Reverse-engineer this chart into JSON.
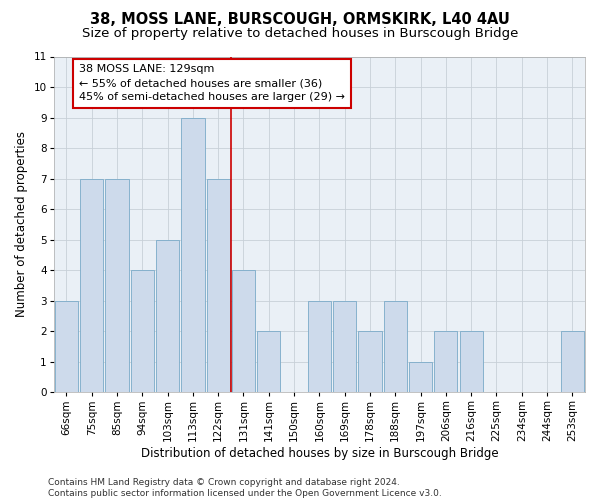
{
  "title1": "38, MOSS LANE, BURSCOUGH, ORMSKIRK, L40 4AU",
  "title2": "Size of property relative to detached houses in Burscough Bridge",
  "xlabel": "Distribution of detached houses by size in Burscough Bridge",
  "ylabel": "Number of detached properties",
  "categories": [
    "66sqm",
    "75sqm",
    "85sqm",
    "94sqm",
    "103sqm",
    "113sqm",
    "122sqm",
    "131sqm",
    "141sqm",
    "150sqm",
    "160sqm",
    "169sqm",
    "178sqm",
    "188sqm",
    "197sqm",
    "206sqm",
    "216sqm",
    "225sqm",
    "234sqm",
    "244sqm",
    "253sqm"
  ],
  "values": [
    3,
    7,
    7,
    4,
    5,
    9,
    7,
    4,
    2,
    0,
    3,
    3,
    2,
    3,
    1,
    2,
    2,
    0,
    0,
    0,
    2
  ],
  "bar_color": "#cddaeb",
  "bar_edge_color": "#7aaac8",
  "vline_x": 6.5,
  "vline_color": "#cc0000",
  "annotation_text": "38 MOSS LANE: 129sqm\n← 55% of detached houses are smaller (36)\n45% of semi-detached houses are larger (29) →",
  "annotation_box_color": "#ffffff",
  "annotation_box_edge": "#cc0000",
  "ylim": [
    0,
    11
  ],
  "yticks": [
    0,
    1,
    2,
    3,
    4,
    5,
    6,
    7,
    8,
    9,
    10,
    11
  ],
  "grid_color": "#c8d0d8",
  "bg_color": "#eaf0f6",
  "footer": "Contains HM Land Registry data © Crown copyright and database right 2024.\nContains public sector information licensed under the Open Government Licence v3.0.",
  "title1_fontsize": 10.5,
  "title2_fontsize": 9.5,
  "xlabel_fontsize": 8.5,
  "ylabel_fontsize": 8.5,
  "tick_fontsize": 7.5,
  "annotation_fontsize": 8,
  "footer_fontsize": 6.5
}
